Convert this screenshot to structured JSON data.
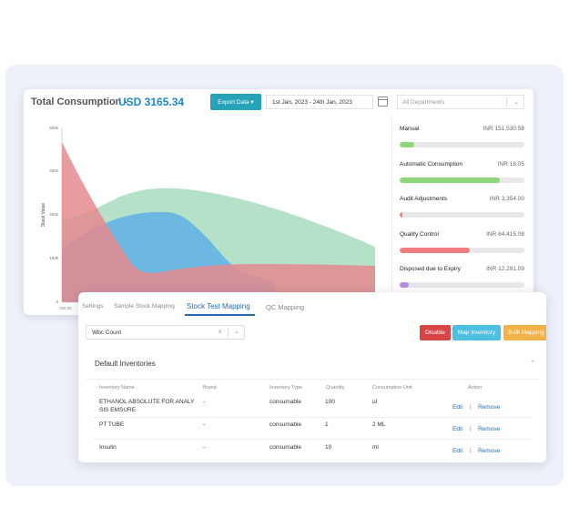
{
  "dashboard": {
    "title": "Total Consumption -",
    "total": "USD 3165.34",
    "export_label": "Export Data ▾",
    "date_range": "1st Jan, 2023 - 24th Jan, 2023",
    "department_placeholder": "All Departments"
  },
  "chart_data": {
    "type": "area",
    "ylabel": "Stock Value",
    "y_ticks": [
      "600k",
      "450k",
      "300k",
      "150k",
      "0"
    ],
    "x_ticks": [
      "Oct 22"
    ],
    "ylim": [
      0,
      600000
    ],
    "colors": {
      "green": "#a8dcc0",
      "blue": "#5fb0e6",
      "red": "#e58a8f"
    },
    "grid": false
  },
  "consumption": [
    {
      "label": "Manual",
      "value": "INR 151,530.58",
      "fill": 0.12,
      "color": "#8fd67a"
    },
    {
      "label": "Automatic Consumption",
      "value": "INR 18.05",
      "fill": 0.8,
      "color": "#8fd67a"
    },
    {
      "label": "Audit Adjustments",
      "value": "INR 3,354.00",
      "fill": 0.02,
      "color": "#f07f7f"
    },
    {
      "label": "Quality Control",
      "value": "INR 84,415.08",
      "fill": 0.56,
      "color": "#f07f7f"
    },
    {
      "label": "Disposed due to Expiry",
      "value": "INR 12,291.09",
      "fill": 0.07,
      "color": "#b98de0"
    }
  ],
  "tabs": [
    "Settings",
    "Sample Stock Mapping",
    "Stock Test Mapping",
    "QC Mapping"
  ],
  "active_tab": "Stock Test Mapping",
  "filter": {
    "value": "Wbc Count"
  },
  "buttons": {
    "disable": "Disable",
    "map": "Map Inventory",
    "bulk": "Bulk Mapping"
  },
  "section": {
    "title": "Default Inventories"
  },
  "table": {
    "headers": [
      "Inventory Name",
      "Brand",
      "Inventory Type",
      "Quantity",
      "Consumption Unit",
      "Action"
    ],
    "rows": [
      {
        "name_line1": "ETHANOL ABSOLUTE FOR ANALY",
        "name_line2": "SIS EMSURE",
        "brand": "-",
        "type": "consumable",
        "qty": "100",
        "unit": "ul"
      },
      {
        "name_line1": "PT TUBE",
        "name_line2": "",
        "brand": "-",
        "type": "consumable",
        "qty": "1",
        "unit": "2 ML"
      },
      {
        "name_line1": "Insulin",
        "name_line2": "",
        "brand": "-",
        "type": "consumable",
        "qty": "10",
        "unit": "ml"
      }
    ],
    "edit": "Edit",
    "divider": "|",
    "remove": "Remove"
  }
}
